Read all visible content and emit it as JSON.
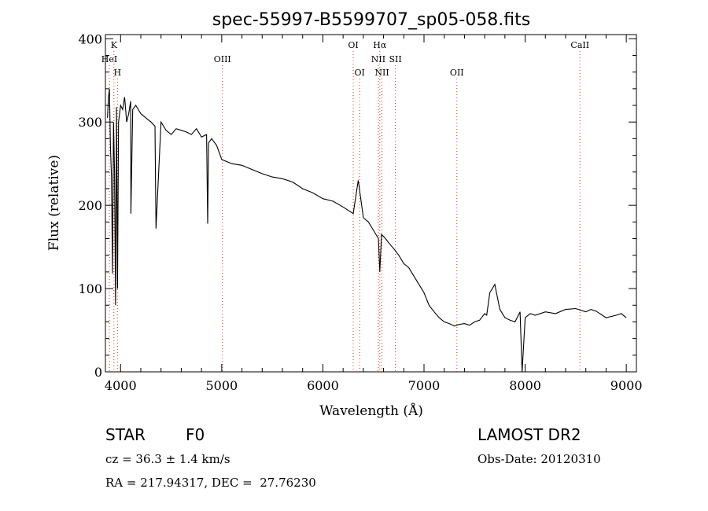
{
  "chart_data": {
    "type": "line",
    "title": "spec-55997-B5599707_sp05-058.fits",
    "xlabel": "Wavelength (Å)",
    "ylabel": "Flux (relative)",
    "xlim": [
      3850,
      9100
    ],
    "ylim": [
      0,
      405
    ],
    "xticks": [
      4000,
      5000,
      6000,
      7000,
      8000,
      9000
    ],
    "yticks": [
      0,
      100,
      200,
      300,
      400
    ],
    "grid": false,
    "spectrum_color": "#000000",
    "line_marker_color": "#c0392b",
    "spectrum": {
      "x": [
        3870,
        3880,
        3890,
        3900,
        3910,
        3920,
        3930,
        3940,
        3950,
        3960,
        3970,
        3980,
        3990,
        4000,
        4020,
        4040,
        4060,
        4080,
        4100,
        4102,
        4120,
        4150,
        4200,
        4250,
        4300,
        4340,
        4350,
        4400,
        4450,
        4500,
        4550,
        4600,
        4650,
        4700,
        4750,
        4800,
        4850,
        4861,
        4870,
        4900,
        4950,
        5000,
        5100,
        5200,
        5300,
        5400,
        5500,
        5600,
        5700,
        5800,
        5900,
        6000,
        6100,
        6200,
        6300,
        6350,
        6400,
        6450,
        6500,
        6550,
        6563,
        6580,
        6620,
        6650,
        6700,
        6750,
        6800,
        6850,
        6900,
        6950,
        7000,
        7050,
        7100,
        7150,
        7200,
        7250,
        7300,
        7350,
        7400,
        7450,
        7500,
        7550,
        7600,
        7620,
        7650,
        7700,
        7750,
        7800,
        7850,
        7900,
        7950,
        7970,
        8000,
        8050,
        8100,
        8200,
        8300,
        8400,
        8500,
        8550,
        8600,
        8650,
        8700,
        8800,
        8900,
        8950,
        9000
      ],
      "y": [
        305,
        330,
        340,
        270,
        235,
        118,
        300,
        240,
        80,
        318,
        100,
        300,
        310,
        320,
        315,
        330,
        300,
        310,
        325,
        190,
        315,
        320,
        310,
        305,
        300,
        295,
        172,
        300,
        290,
        285,
        292,
        290,
        288,
        285,
        292,
        282,
        285,
        178,
        275,
        280,
        272,
        255,
        250,
        248,
        243,
        238,
        234,
        232,
        228,
        220,
        215,
        208,
        205,
        198,
        190,
        230,
        185,
        180,
        170,
        160,
        120,
        165,
        160,
        155,
        148,
        140,
        130,
        125,
        115,
        105,
        95,
        80,
        72,
        65,
        60,
        58,
        55,
        57,
        58,
        56,
        60,
        62,
        70,
        68,
        95,
        105,
        75,
        65,
        62,
        60,
        72,
        0,
        65,
        70,
        68,
        72,
        70,
        75,
        76,
        74,
        72,
        75,
        73,
        65,
        68,
        70,
        65
      ]
    },
    "lines": [
      {
        "label": "K",
        "x": 3934,
        "row": 0
      },
      {
        "label": "HeI",
        "x": 3889,
        "row": 1
      },
      {
        "label": "H",
        "x": 3969,
        "row": 2
      },
      {
        "label": "OIII",
        "x": 5007,
        "row": 1
      },
      {
        "label": "OI",
        "x": 6300,
        "row": 0
      },
      {
        "label": "OI",
        "x": 6364,
        "row": 2
      },
      {
        "label": "Hα",
        "x": 6563,
        "row": 0
      },
      {
        "label": "NII",
        "x": 6548,
        "row": 1
      },
      {
        "label": "NII",
        "x": 6584,
        "row": 2
      },
      {
        "label": "SII",
        "x": 6717,
        "row": 1
      },
      {
        "label": "OII",
        "x": 7325,
        "row": 2
      },
      {
        "label": "CaII",
        "x": 8542,
        "row": 0
      }
    ]
  },
  "info": {
    "object_class": "STAR",
    "subclass": "F0",
    "survey": "LAMOST DR2",
    "cz": "cz = 36.3 ± 1.4 km/s",
    "obs_date": "Obs-Date: 20120310",
    "coords": "RA = 217.94317, DEC =  27.76230"
  }
}
